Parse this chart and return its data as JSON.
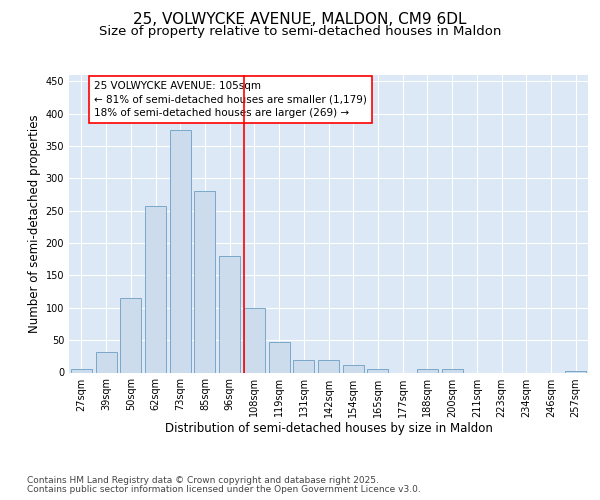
{
  "title_line1": "25, VOLWYCKE AVENUE, MALDON, CM9 6DL",
  "title_line2": "Size of property relative to semi-detached houses in Maldon",
  "xlabel": "Distribution of semi-detached houses by size in Maldon",
  "ylabel": "Number of semi-detached properties",
  "categories": [
    "27sqm",
    "39sqm",
    "50sqm",
    "62sqm",
    "73sqm",
    "85sqm",
    "96sqm",
    "108sqm",
    "119sqm",
    "131sqm",
    "142sqm",
    "154sqm",
    "165sqm",
    "177sqm",
    "188sqm",
    "200sqm",
    "211sqm",
    "223sqm",
    "234sqm",
    "246sqm",
    "257sqm"
  ],
  "values": [
    6,
    32,
    115,
    258,
    375,
    280,
    180,
    100,
    47,
    20,
    20,
    11,
    5,
    0,
    6,
    6,
    0,
    0,
    0,
    0,
    2
  ],
  "bar_color": "#ccdcec",
  "bar_edge_color": "#7aa8c8",
  "vline_color": "red",
  "annotation_text": "25 VOLWYCKE AVENUE: 105sqm\n← 81% of semi-detached houses are smaller (1,179)\n18% of semi-detached houses are larger (269) →",
  "background_color": "#dce8f5",
  "grid_color": "white",
  "ylim": [
    0,
    460
  ],
  "yticks": [
    0,
    50,
    100,
    150,
    200,
    250,
    300,
    350,
    400,
    450
  ],
  "footer_line1": "Contains HM Land Registry data © Crown copyright and database right 2025.",
  "footer_line2": "Contains public sector information licensed under the Open Government Licence v3.0.",
  "title_fontsize": 11,
  "subtitle_fontsize": 9.5,
  "label_fontsize": 8.5,
  "tick_fontsize": 7,
  "footer_fontsize": 6.5,
  "annot_fontsize": 7.5
}
